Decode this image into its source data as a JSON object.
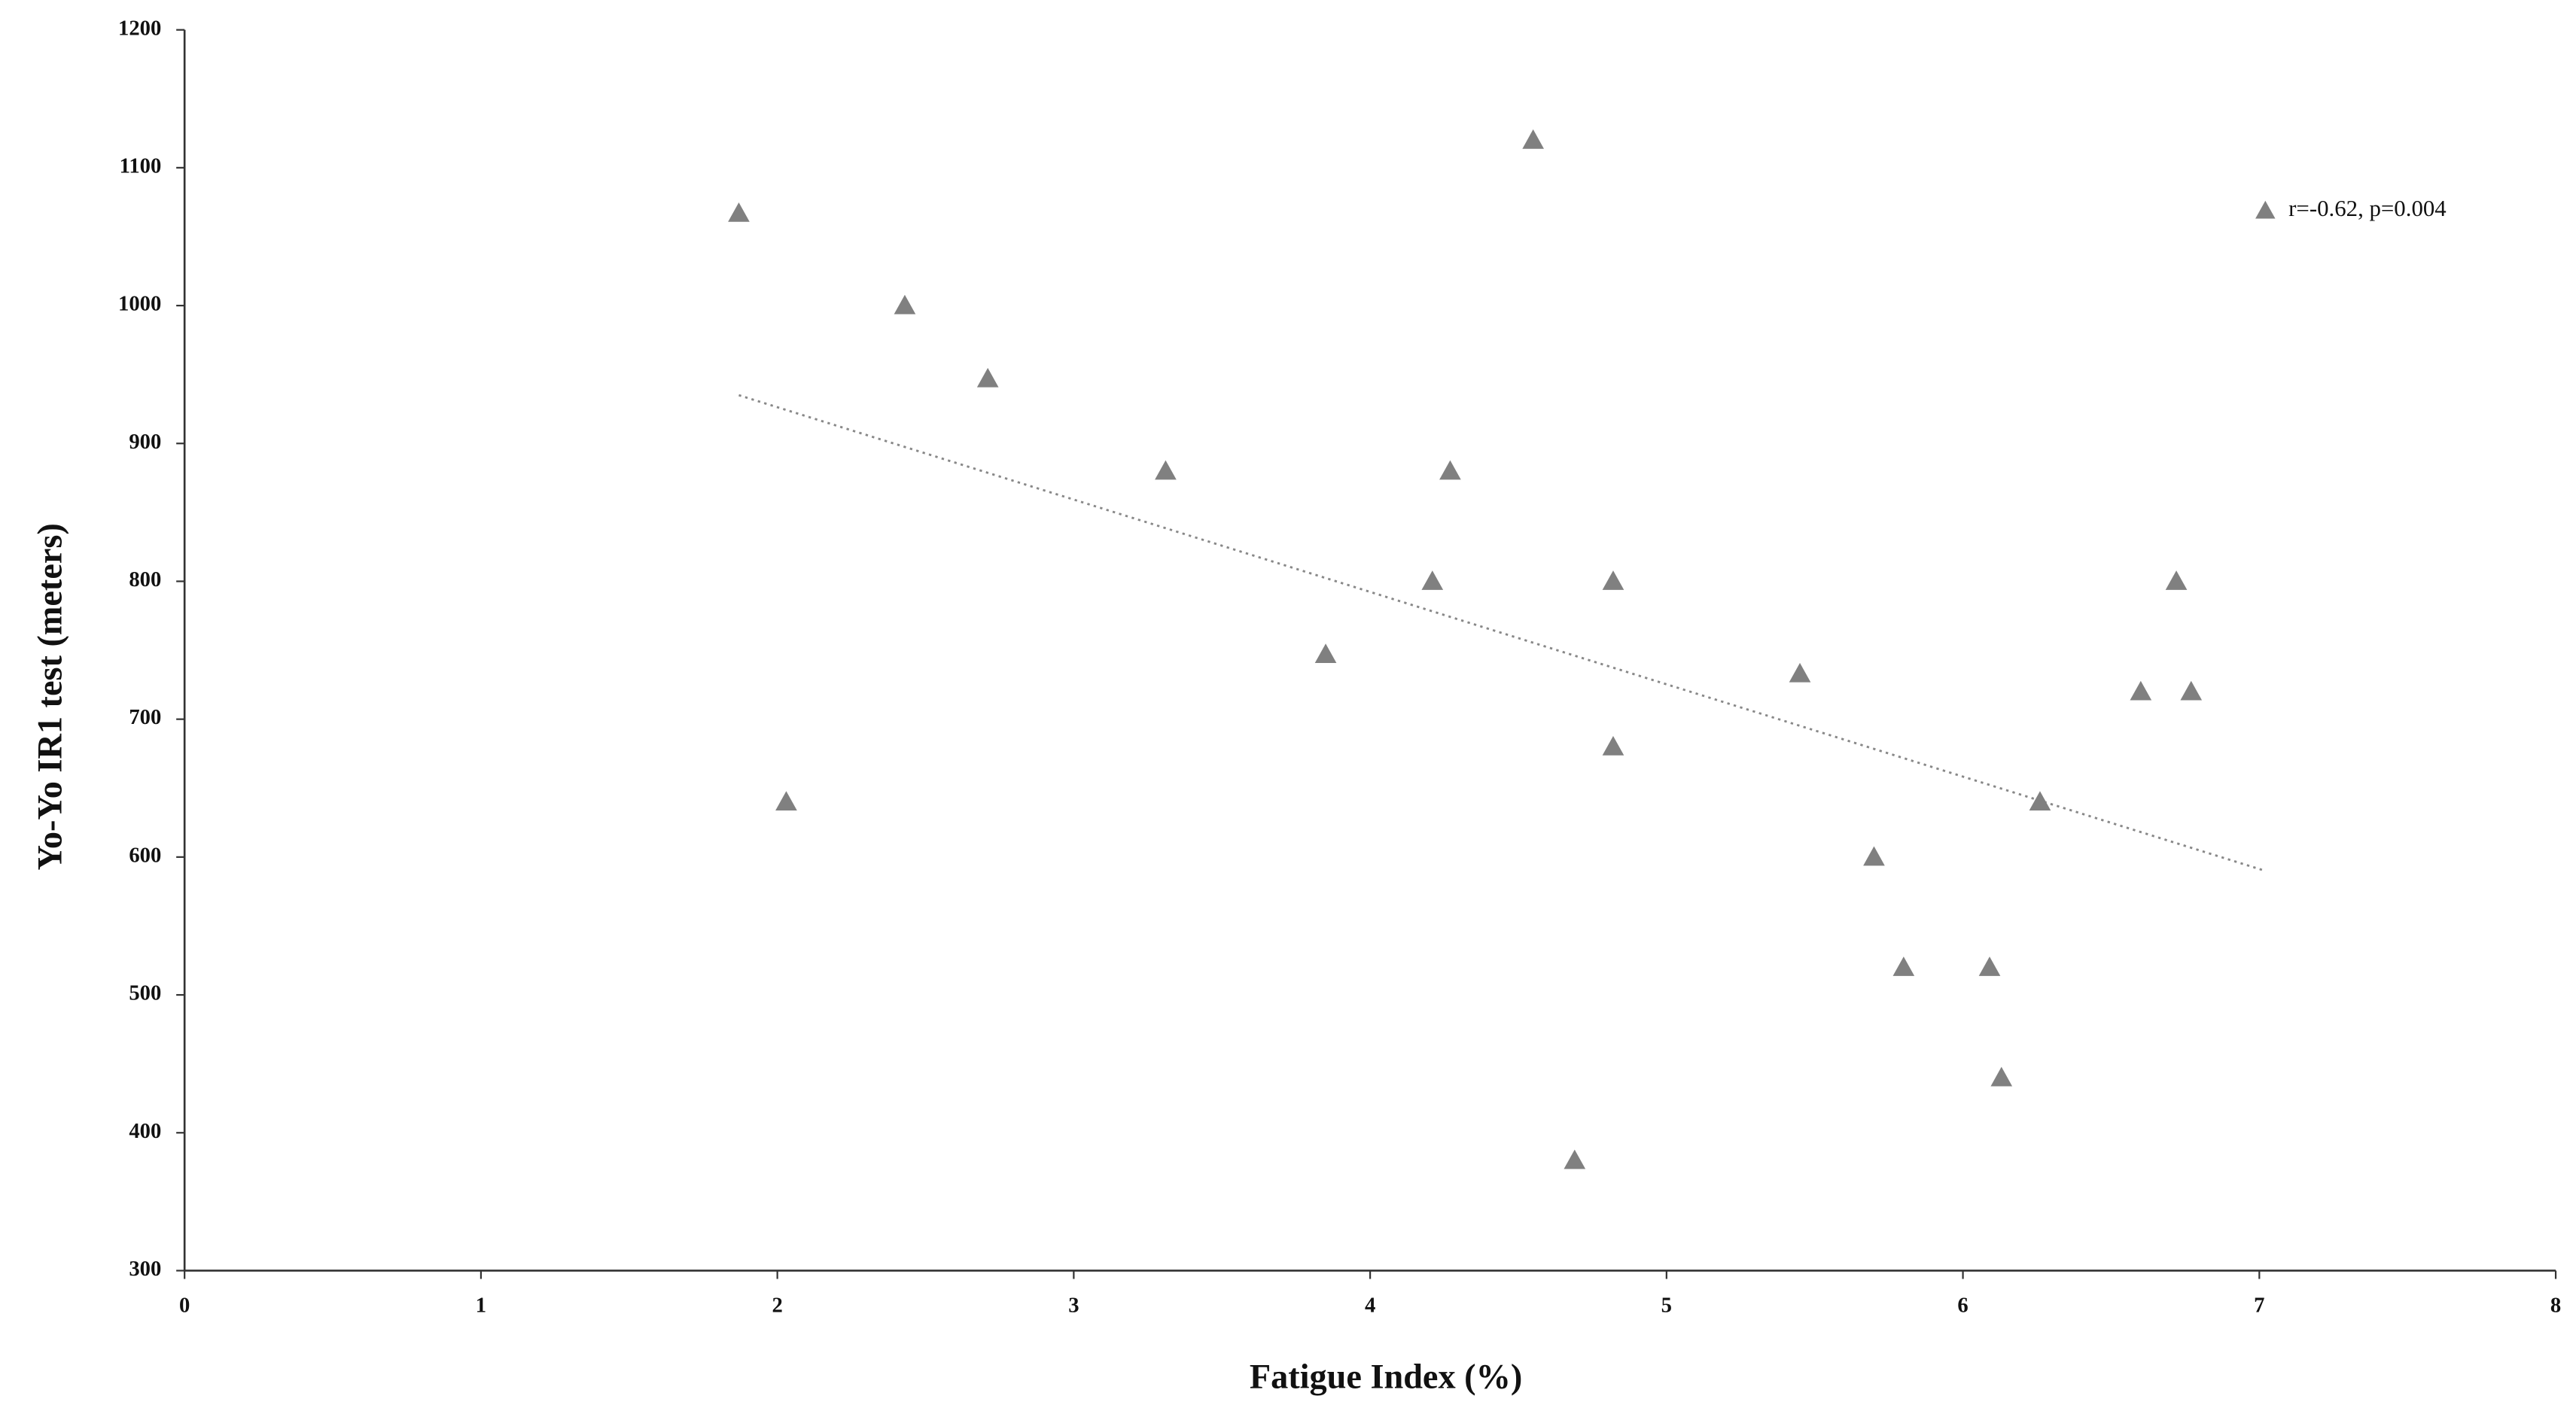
{
  "chart_data": {
    "type": "scatter",
    "x_label": "Fatigue Index (%)",
    "y_label": "Yo-Yo IR1 test (meters)",
    "xlim": [
      0,
      8
    ],
    "xticks": [
      0,
      1,
      2,
      3,
      4,
      5,
      6,
      7,
      8
    ],
    "ylim": [
      300,
      1200
    ],
    "yticks": [
      300,
      400,
      500,
      600,
      700,
      800,
      900,
      1000,
      1100,
      1200
    ],
    "legend": "upper right",
    "series": [
      {
        "name": "r=-0.62, p=0.004",
        "color": "#808080",
        "x": [
          1.87,
          2.03,
          2.43,
          2.71,
          3.31,
          3.85,
          4.21,
          4.27,
          4.55,
          4.69,
          4.82,
          4.82,
          5.45,
          5.7,
          5.8,
          6.09,
          6.13,
          6.26,
          6.6,
          6.72,
          6.77
        ],
        "values": [
          1067,
          640,
          1000,
          947,
          880,
          747,
          800,
          880,
          1120,
          380,
          800,
          680,
          733,
          600,
          520,
          520,
          440,
          640,
          720,
          800,
          720
        ]
      }
    ],
    "trendline": {
      "x": [
        1.87,
        7.02
      ],
      "values": [
        935,
        590
      ]
    }
  }
}
